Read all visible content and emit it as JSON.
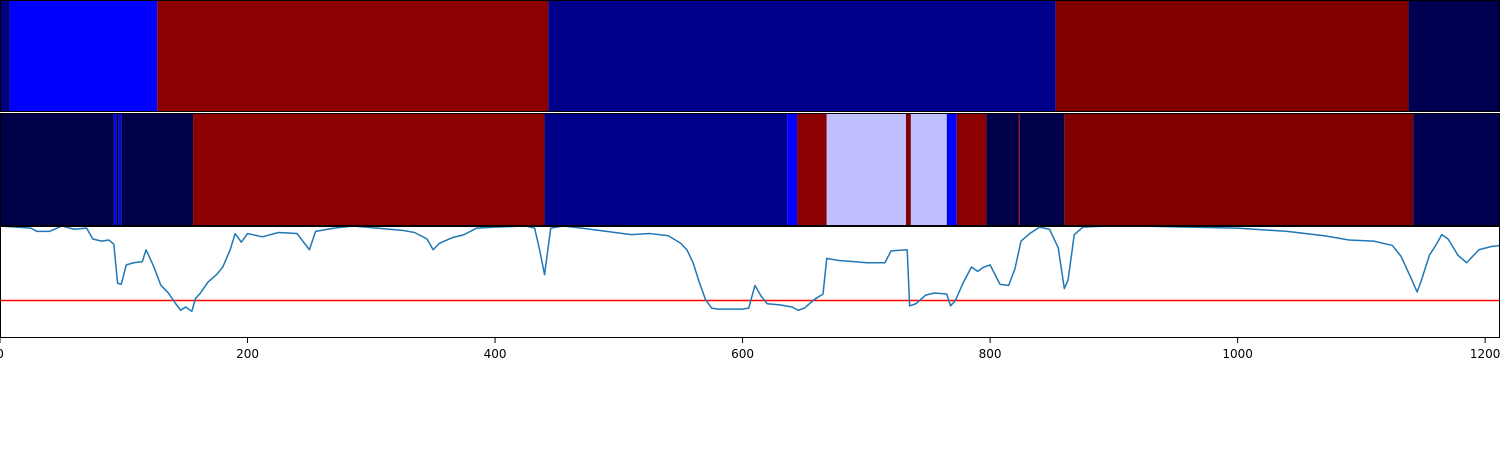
{
  "chart_data": [
    {
      "type": "heatmap",
      "x_range": [
        0,
        1212
      ],
      "segments": [
        {
          "x0": 0,
          "x1": 8,
          "color": "#000080"
        },
        {
          "x0": 8,
          "x1": 127,
          "color": "#0000ff"
        },
        {
          "x0": 127,
          "x1": 443,
          "color": "#8b0000"
        },
        {
          "x0": 443,
          "x1": 853,
          "color": "#00008b"
        },
        {
          "x0": 853,
          "x1": 1138,
          "color": "#800000"
        },
        {
          "x0": 1138,
          "x1": 1212,
          "color": "#000050"
        }
      ]
    },
    {
      "type": "heatmap",
      "x_range": [
        0,
        1212
      ],
      "segments": [
        {
          "x0": 0,
          "x1": 92,
          "color": "#000048"
        },
        {
          "x0": 92,
          "x1": 94,
          "color": "#0000ff"
        },
        {
          "x0": 94,
          "x1": 96,
          "color": "#000048"
        },
        {
          "x0": 96,
          "x1": 98,
          "color": "#0000ff"
        },
        {
          "x0": 98,
          "x1": 156,
          "color": "#000048"
        },
        {
          "x0": 156,
          "x1": 440,
          "color": "#8b0000"
        },
        {
          "x0": 440,
          "x1": 636,
          "color": "#00008b"
        },
        {
          "x0": 636,
          "x1": 644,
          "color": "#0000ff"
        },
        {
          "x0": 644,
          "x1": 668,
          "color": "#8b0000"
        },
        {
          "x0": 668,
          "x1": 732,
          "color": "#c0c0ff"
        },
        {
          "x0": 732,
          "x1": 736,
          "color": "#800000"
        },
        {
          "x0": 736,
          "x1": 765,
          "color": "#c0c0ff"
        },
        {
          "x0": 765,
          "x1": 773,
          "color": "#0000ff"
        },
        {
          "x0": 773,
          "x1": 797,
          "color": "#8b0000"
        },
        {
          "x0": 797,
          "x1": 823,
          "color": "#000048"
        },
        {
          "x0": 823,
          "x1": 824,
          "color": "#8b0000"
        },
        {
          "x0": 824,
          "x1": 860,
          "color": "#000048"
        },
        {
          "x0": 860,
          "x1": 1142,
          "color": "#800000"
        },
        {
          "x0": 1142,
          "x1": 1212,
          "color": "#000050"
        }
      ]
    },
    {
      "type": "line",
      "x_range": [
        0,
        1212
      ],
      "y_range": [
        0,
        1
      ],
      "xticks": [
        0,
        200,
        400,
        600,
        800,
        1000,
        1200
      ],
      "threshold": {
        "y": 0.31,
        "color": "#ff0000"
      },
      "series": [
        {
          "color": "#1f77b4",
          "points": [
            [
              0,
              1.0
            ],
            [
              25,
              0.98
            ],
            [
              30,
              0.95
            ],
            [
              40,
              0.95
            ],
            [
              50,
              1.0
            ],
            [
              60,
              0.97
            ],
            [
              70,
              0.98
            ],
            [
              75,
              0.88
            ],
            [
              82,
              0.86
            ],
            [
              88,
              0.87
            ],
            [
              92,
              0.83
            ],
            [
              95,
              0.47
            ],
            [
              98,
              0.46
            ],
            [
              102,
              0.64
            ],
            [
              108,
              0.66
            ],
            [
              115,
              0.67
            ],
            [
              118,
              0.78
            ],
            [
              124,
              0.63
            ],
            [
              130,
              0.45
            ],
            [
              136,
              0.38
            ],
            [
              142,
              0.28
            ],
            [
              146,
              0.22
            ],
            [
              150,
              0.25
            ],
            [
              155,
              0.21
            ],
            [
              158,
              0.33
            ],
            [
              162,
              0.38
            ],
            [
              168,
              0.48
            ],
            [
              175,
              0.55
            ],
            [
              180,
              0.62
            ],
            [
              186,
              0.78
            ],
            [
              190,
              0.93
            ],
            [
              195,
              0.85
            ],
            [
              200,
              0.93
            ],
            [
              212,
              0.9
            ],
            [
              225,
              0.94
            ],
            [
              240,
              0.93
            ],
            [
              250,
              0.78
            ],
            [
              255,
              0.95
            ],
            [
              270,
              0.98
            ],
            [
              285,
              1.0
            ],
            [
              305,
              0.98
            ],
            [
              325,
              0.96
            ],
            [
              335,
              0.94
            ],
            [
              345,
              0.88
            ],
            [
              350,
              0.78
            ],
            [
              355,
              0.84
            ],
            [
              365,
              0.89
            ],
            [
              375,
              0.92
            ],
            [
              385,
              0.98
            ],
            [
              400,
              0.99
            ],
            [
              425,
              1.0
            ],
            [
              432,
              0.98
            ],
            [
              436,
              0.78
            ],
            [
              440,
              0.55
            ],
            [
              445,
              0.98
            ],
            [
              455,
              1.0
            ],
            [
              470,
              0.98
            ],
            [
              490,
              0.95
            ],
            [
              510,
              0.92
            ],
            [
              525,
              0.93
            ],
            [
              540,
              0.91
            ],
            [
              550,
              0.84
            ],
            [
              555,
              0.78
            ],
            [
              560,
              0.66
            ],
            [
              565,
              0.48
            ],
            [
              570,
              0.32
            ],
            [
              575,
              0.24
            ],
            [
              580,
              0.23
            ],
            [
              590,
              0.23
            ],
            [
              600,
              0.23
            ],
            [
              605,
              0.24
            ],
            [
              610,
              0.45
            ],
            [
              615,
              0.35
            ],
            [
              620,
              0.28
            ],
            [
              630,
              0.27
            ],
            [
              640,
              0.25
            ],
            [
              645,
              0.22
            ],
            [
              650,
              0.24
            ],
            [
              658,
              0.32
            ],
            [
              665,
              0.37
            ],
            [
              668,
              0.7
            ],
            [
              678,
              0.68
            ],
            [
              690,
              0.67
            ],
            [
              700,
              0.66
            ],
            [
              715,
              0.66
            ],
            [
              720,
              0.77
            ],
            [
              733,
              0.78
            ],
            [
              735,
              0.26
            ],
            [
              740,
              0.28
            ],
            [
              748,
              0.36
            ],
            [
              755,
              0.38
            ],
            [
              765,
              0.37
            ],
            [
              768,
              0.26
            ],
            [
              772,
              0.31
            ],
            [
              778,
              0.47
            ],
            [
              785,
              0.62
            ],
            [
              790,
              0.58
            ],
            [
              795,
              0.62
            ],
            [
              800,
              0.64
            ],
            [
              808,
              0.46
            ],
            [
              815,
              0.45
            ],
            [
              820,
              0.6
            ],
            [
              825,
              0.86
            ],
            [
              832,
              0.93
            ],
            [
              840,
              0.99
            ],
            [
              848,
              0.97
            ],
            [
              855,
              0.8
            ],
            [
              860,
              0.42
            ],
            [
              863,
              0.5
            ],
            [
              868,
              0.92
            ],
            [
              875,
              0.99
            ],
            [
              895,
              1.0
            ],
            [
              920,
              1.0
            ],
            [
              960,
              0.99
            ],
            [
              1000,
              0.98
            ],
            [
              1040,
              0.95
            ],
            [
              1070,
              0.91
            ],
            [
              1090,
              0.87
            ],
            [
              1110,
              0.86
            ],
            [
              1125,
              0.82
            ],
            [
              1132,
              0.72
            ],
            [
              1140,
              0.52
            ],
            [
              1145,
              0.39
            ],
            [
              1148,
              0.48
            ],
            [
              1155,
              0.73
            ],
            [
              1160,
              0.82
            ],
            [
              1165,
              0.92
            ],
            [
              1170,
              0.88
            ],
            [
              1178,
              0.73
            ],
            [
              1185,
              0.66
            ],
            [
              1195,
              0.78
            ],
            [
              1205,
              0.81
            ],
            [
              1212,
              0.82
            ]
          ]
        }
      ]
    }
  ]
}
